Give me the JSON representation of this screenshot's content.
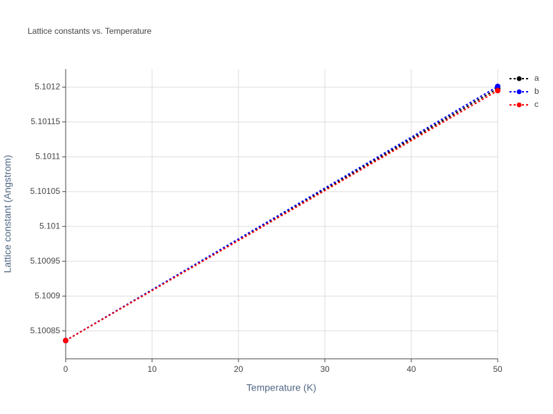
{
  "chart_data": {
    "type": "line",
    "title": "Lattice constants vs. Temperature",
    "x_label": "Temperature (K)",
    "y_label": "Lattice constant (Angstrom)",
    "x": [
      0,
      50
    ],
    "series": [
      {
        "name": "a",
        "color": "#000000",
        "values": [
          5.1008362,
          5.101198
        ]
      },
      {
        "name": "b",
        "color": "#0000ff",
        "values": [
          5.1008362,
          5.101201
        ]
      },
      {
        "name": "c",
        "color": "#ff0000",
        "values": [
          5.1008362,
          5.101195
        ]
      }
    ],
    "xlim": [
      0,
      50
    ],
    "xticks": [
      0,
      10,
      20,
      30,
      40,
      50
    ],
    "ylim": [
      5.10081,
      5.101226
    ],
    "yticks": [
      5.10085,
      5.1009,
      5.10095,
      5.101,
      5.10105,
      5.1011,
      5.10115,
      5.1012
    ],
    "grid": true,
    "legend": "right"
  }
}
